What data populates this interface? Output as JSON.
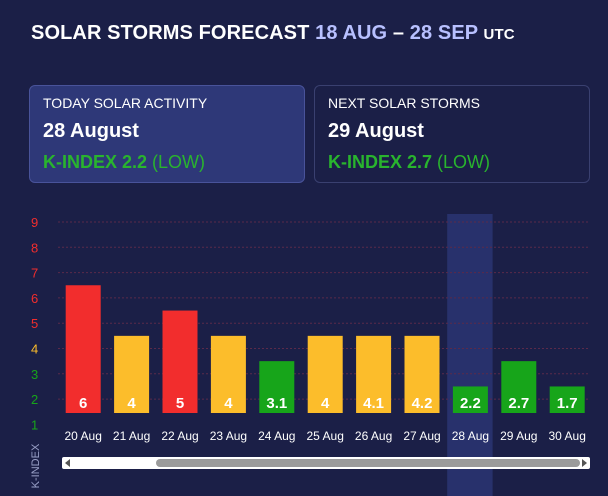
{
  "header": {
    "title_main": "SOLAR STORMS FORECAST",
    "date_range": "18 AUG",
    "dash": "–",
    "date_range_end": "28 SEP",
    "tz": "UTC"
  },
  "today_card": {
    "label": "TODAY SOLAR ACTIVITY",
    "date": "28 August",
    "kindex_label": "K-INDEX 2.2",
    "level": "(LOW)"
  },
  "next_card": {
    "label": "NEXT SOLAR STORMS",
    "date": "29 August",
    "kindex_label": "K-INDEX 2.7",
    "level": "(LOW)"
  },
  "colors": {
    "high": "#f22d2d",
    "moderate": "#fcbd2b",
    "low": "#17a51a",
    "highlight": "#2e3878"
  },
  "chart_data": {
    "type": "bar",
    "ylabel": "K-INDEX",
    "ylim": [
      1,
      9
    ],
    "yticks": [
      "1",
      "2",
      "3",
      "4",
      "5",
      "6",
      "7",
      "8",
      "9"
    ],
    "categories": [
      "20 Aug",
      "21 Aug",
      "22 Aug",
      "23 Aug",
      "24 Aug",
      "25 Aug",
      "26 Aug",
      "27 Aug",
      "28 Aug",
      "29 Aug",
      "30 Aug"
    ],
    "values": [
      6,
      4,
      5,
      4,
      3.1,
      4,
      4.1,
      4.2,
      2.2,
      2.7,
      1.7
    ],
    "value_labels": [
      "6",
      "4",
      "5",
      "4",
      "3.1",
      "4",
      "4.1",
      "4.2",
      "2.2",
      "2.7",
      "1.7"
    ],
    "bar_heights": [
      6.5,
      4.5,
      5.5,
      4.5,
      3.5,
      4.5,
      4.5,
      4.5,
      2.5,
      3.5,
      2.5
    ],
    "bar_levels": [
      "high",
      "moderate",
      "high",
      "moderate",
      "low",
      "moderate",
      "moderate",
      "moderate",
      "low",
      "low",
      "low"
    ],
    "highlighted": "28 Aug",
    "grid": true
  }
}
